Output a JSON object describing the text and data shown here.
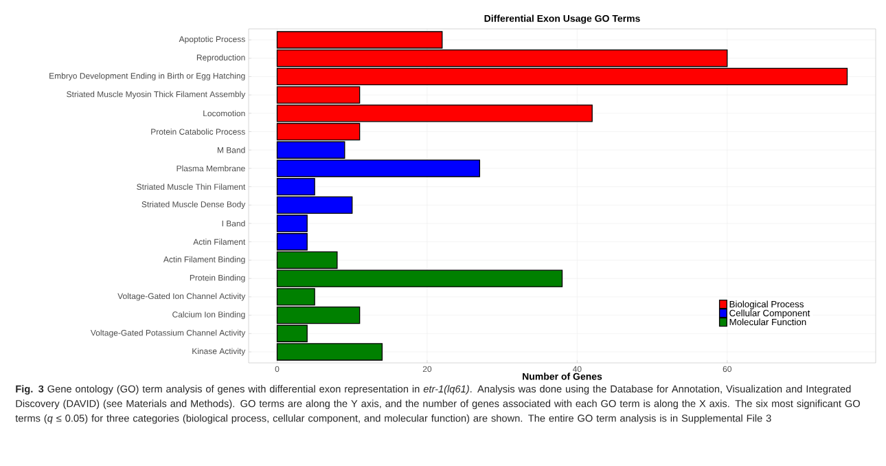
{
  "chart_data": {
    "type": "bar",
    "orientation": "horizontal",
    "title": "Differential Exon Usage GO Terms",
    "xlabel": "Number of Genes",
    "categories": [
      "Apoptotic Process",
      "Reproduction",
      "Embryo Development Ending in Birth or Egg Hatching",
      "Striated Muscle Myosin Thick Filament Assembly",
      "Locomotion",
      "Protein Catabolic Process",
      "M Band",
      "Plasma Membrane",
      "Striated Muscle Thin Filament",
      "Striated Muscle Dense Body",
      "I Band",
      "Actin Filament",
      "Actin Filament Binding",
      "Protein Binding",
      "Voltage-Gated Ion Channel Activity",
      "Calcium Ion Binding",
      "Voltage-Gated Potassium Channel Activity",
      "Kinase Activity"
    ],
    "series": [
      {
        "name": "Biological Process",
        "color": "#ff0000",
        "values": [
          22,
          60,
          76,
          11,
          42,
          11,
          null,
          null,
          null,
          null,
          null,
          null,
          null,
          null,
          null,
          null,
          null,
          null
        ]
      },
      {
        "name": "Cellular Component",
        "color": "#0000ff",
        "values": [
          null,
          null,
          null,
          null,
          null,
          null,
          9,
          27,
          5,
          10,
          4,
          4,
          null,
          null,
          null,
          null,
          null,
          null
        ]
      },
      {
        "name": "Molecular Function",
        "color": "#008000",
        "values": [
          null,
          null,
          null,
          null,
          null,
          null,
          null,
          null,
          null,
          null,
          null,
          null,
          8,
          38,
          5,
          11,
          4,
          14
        ]
      }
    ],
    "xlim": [
      -3.8,
      79.8
    ],
    "xticks": [
      0,
      20,
      40,
      60
    ],
    "grid": true,
    "legend": "bottom right",
    "annotations": [
      "**Fig. 3** Gene ontology (GO) term analysis of genes with differential exon representation in *etr-1(lq61)*. Analysis was done using the Database for Annotation, Visualization and Integrated Discovery (DAVID) (see Materials and Methods). GO terms are along the Y axis, and the number of genes associated with each GO term is along the X axis. The six most significant GO terms (*q* ≤ 0.05) for three categories (biological process, cellular component, and molecular function) are shown. The entire GO term analysis is in Supplemental File 3"
    ]
  }
}
